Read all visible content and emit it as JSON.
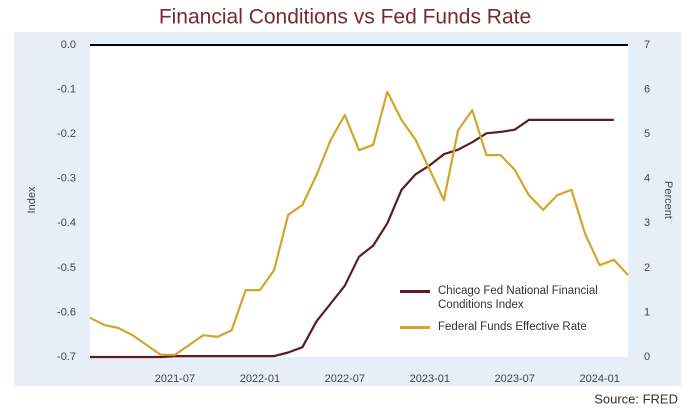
{
  "chart_data": {
    "type": "line",
    "title": "Financial Conditions vs Fed Funds Rate",
    "source": "Source: FRED",
    "ylabel": "Index",
    "y2label": "Percent",
    "x": [
      "2021-01",
      "2021-02",
      "2021-03",
      "2021-04",
      "2021-05",
      "2021-06",
      "2021-07",
      "2021-08",
      "2021-09",
      "2021-10",
      "2021-11",
      "2021-12",
      "2022-01",
      "2022-02",
      "2022-03",
      "2022-04",
      "2022-05",
      "2022-06",
      "2022-07",
      "2022-08",
      "2022-09",
      "2022-10",
      "2022-11",
      "2022-12",
      "2023-01",
      "2023-02",
      "2023-03",
      "2023-04",
      "2023-05",
      "2023-06",
      "2023-07",
      "2023-08",
      "2023-09",
      "2023-10",
      "2023-11",
      "2023-12",
      "2024-01",
      "2024-02",
      "2024-03"
    ],
    "xlim": [
      "2021-01",
      "2024-03"
    ],
    "xticks": [
      "2021-07",
      "2022-01",
      "2022-07",
      "2023-01",
      "2023-07",
      "2024-01"
    ],
    "ylim": [
      -0.7,
      0
    ],
    "yticks": [
      {
        "value": 0,
        "label": "0.0"
      },
      -0.1,
      -0.2,
      -0.3,
      -0.4,
      -0.5,
      -0.6,
      -0.7
    ],
    "y2lim": [
      0,
      7
    ],
    "y2ticks": [
      0,
      1,
      2,
      3,
      4,
      5,
      6,
      7
    ],
    "reference_line": 0,
    "grid": false,
    "legend": "lower right",
    "series": [
      {
        "name": "Chicago Fed National Financial Conditions Index",
        "color": "#5a1e1e",
        "axis": "y",
        "values": [
          -0.7,
          -0.7,
          -0.7,
          -0.7,
          -0.7,
          -0.7,
          -0.698,
          -0.698,
          -0.698,
          -0.698,
          -0.698,
          -0.698,
          -0.698,
          -0.698,
          -0.69,
          -0.678,
          -0.62,
          -0.58,
          -0.54,
          -0.475,
          -0.45,
          -0.4,
          -0.325,
          -0.29,
          -0.27,
          -0.245,
          -0.235,
          -0.218,
          -0.198,
          -0.195,
          -0.19,
          -0.168,
          -0.168,
          -0.168,
          -0.168,
          -0.168,
          -0.168,
          -0.168,
          null
        ]
      },
      {
        "name": "Federal Funds Effective Rate",
        "color": "#d4a52c",
        "axis": "y2",
        "values": [
          0.88,
          0.72,
          0.65,
          0.49,
          0.27,
          0.05,
          0.05,
          0.27,
          0.49,
          0.45,
          0.6,
          1.5,
          1.5,
          1.95,
          3.19,
          3.41,
          4.08,
          4.87,
          5.43,
          4.64,
          4.76,
          5.95,
          5.32,
          4.87,
          4.2,
          3.52,
          5.09,
          5.54,
          4.53,
          4.53,
          4.2,
          3.63,
          3.3,
          3.63,
          3.75,
          2.74,
          2.06,
          2.18,
          1.84
        ]
      }
    ]
  }
}
